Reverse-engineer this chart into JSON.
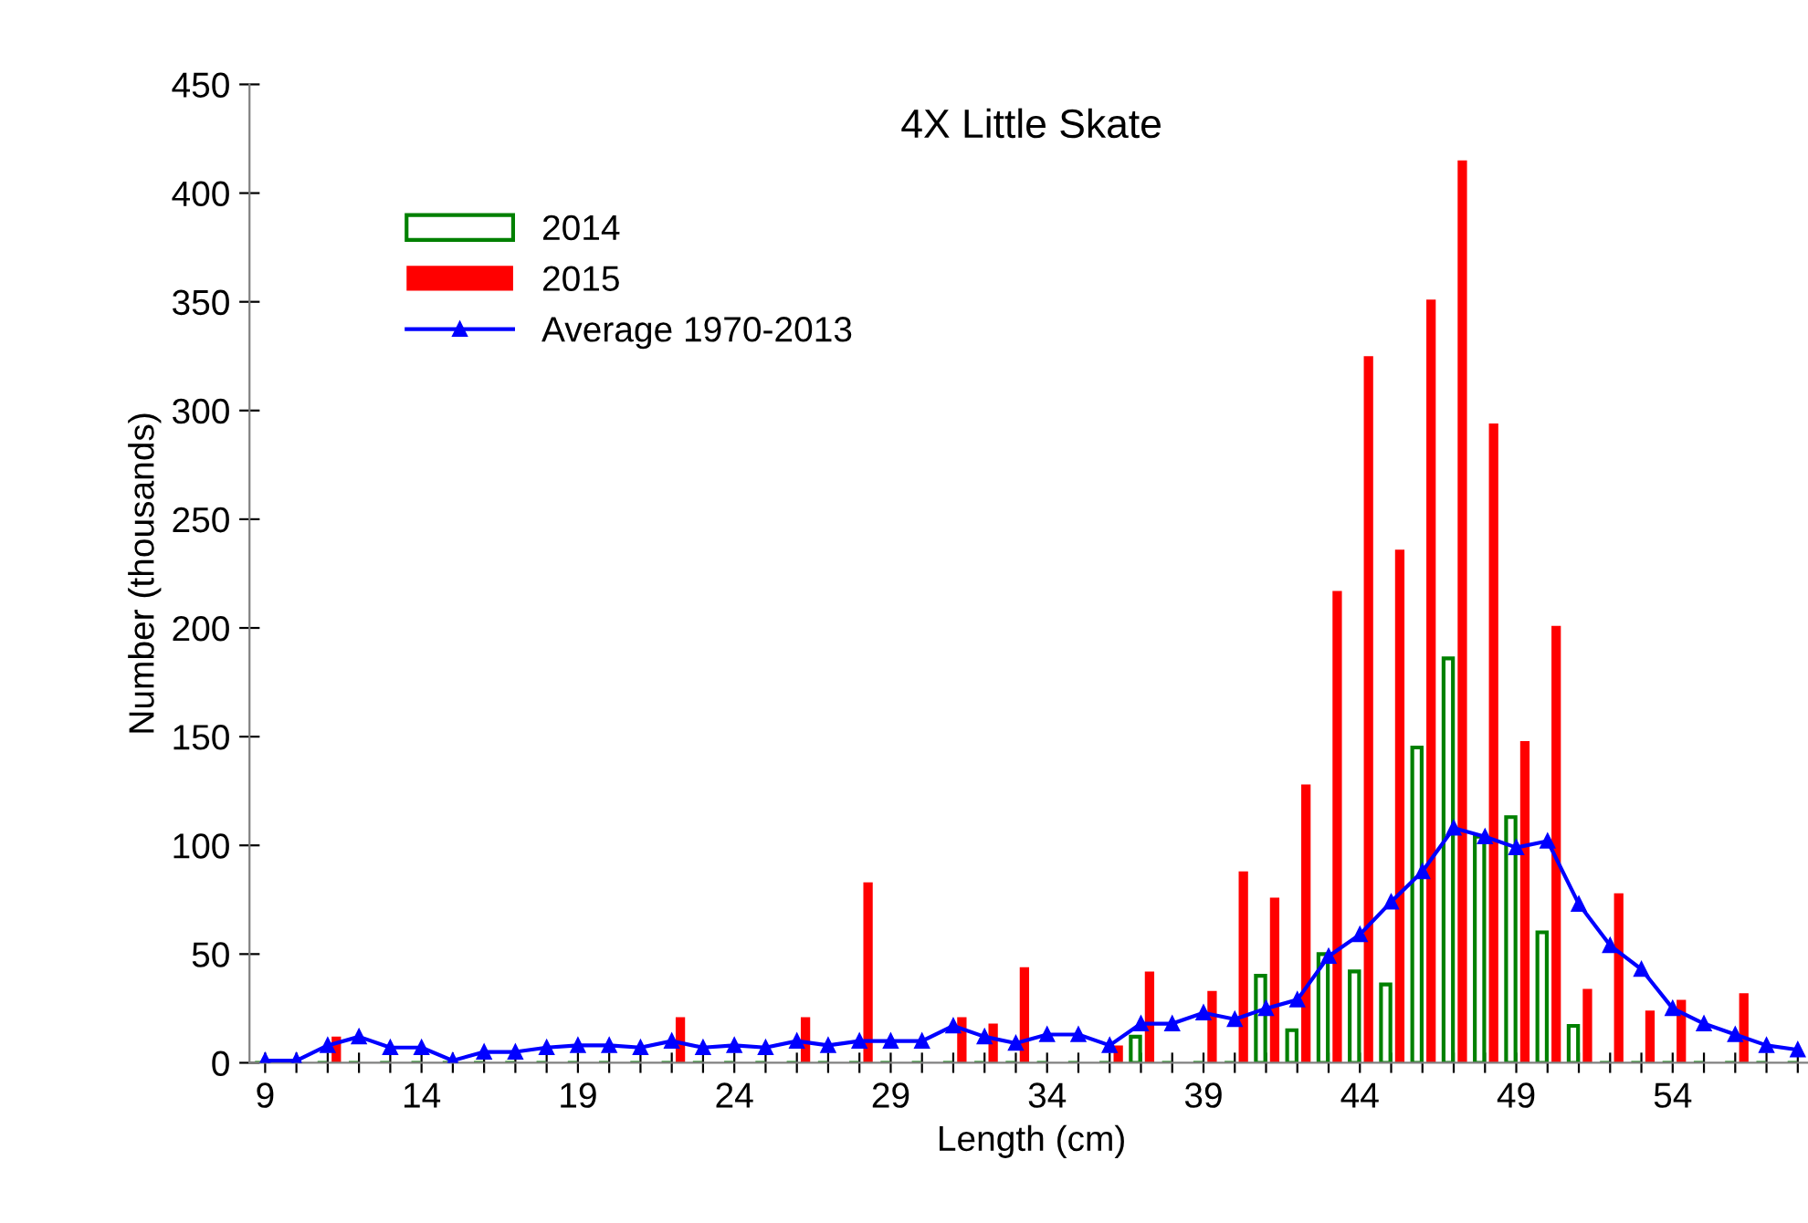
{
  "chart_data": {
    "type": "bar",
    "title": "4X Little Skate",
    "xlabel": "Length (cm)",
    "ylabel": "Number (thousands)",
    "categories": [
      "9",
      null,
      null,
      null,
      null,
      "14",
      null,
      null,
      null,
      null,
      "19",
      null,
      null,
      null,
      null,
      "24",
      null,
      null,
      null,
      null,
      "29",
      null,
      null,
      null,
      null,
      "34",
      null,
      null,
      null,
      null,
      "39",
      null,
      null,
      null,
      null,
      "44",
      null,
      null,
      null,
      null,
      "49",
      null,
      null,
      null,
      null,
      "54",
      null,
      null,
      null,
      null
    ],
    "series": [
      {
        "name": "2014",
        "color": "#008000",
        "values": [
          0,
          0,
          0,
          0,
          0,
          0,
          0,
          0,
          0,
          0,
          0,
          0,
          0,
          0,
          0,
          0,
          0,
          0,
          0,
          0,
          0,
          0,
          0,
          0,
          0,
          0,
          0,
          0,
          12,
          0,
          0,
          0,
          40,
          15,
          50,
          42,
          36,
          145,
          186,
          104,
          113,
          60,
          17,
          0,
          0,
          0,
          0,
          0,
          0,
          0
        ]
      },
      {
        "name": "2015",
        "color": "#ff0000",
        "values": [
          0,
          0,
          12,
          0,
          0,
          0,
          0,
          0,
          0,
          0,
          0,
          0,
          0,
          21,
          0,
          0,
          0,
          21,
          0,
          83,
          0,
          0,
          21,
          18,
          44,
          0,
          0,
          8,
          42,
          0,
          33,
          88,
          76,
          128,
          217,
          325,
          236,
          351,
          415,
          294,
          148,
          201,
          34,
          78,
          24,
          29,
          0,
          32,
          0,
          0
        ]
      },
      {
        "name": "Average 1970-2013",
        "type": "line",
        "color": "#0000ff",
        "marker": "triangle",
        "line_style": "solid",
        "values": [
          1,
          1,
          8,
          12,
          7,
          7,
          1,
          5,
          5,
          7,
          8,
          8,
          7,
          10,
          7,
          8,
          7,
          10,
          8,
          10,
          10,
          10,
          17,
          12,
          9,
          13,
          13,
          8,
          18,
          18,
          23,
          20,
          25,
          29,
          49,
          59,
          74,
          88,
          108,
          104,
          99,
          102,
          73,
          54,
          43,
          25,
          18,
          13,
          8,
          6
        ]
      }
    ],
    "ylim": [
      0,
      450
    ],
    "yticks": [
      0,
      50,
      100,
      150,
      200,
      250,
      300,
      350,
      400,
      450
    ],
    "grid": false,
    "legend": "top left"
  }
}
